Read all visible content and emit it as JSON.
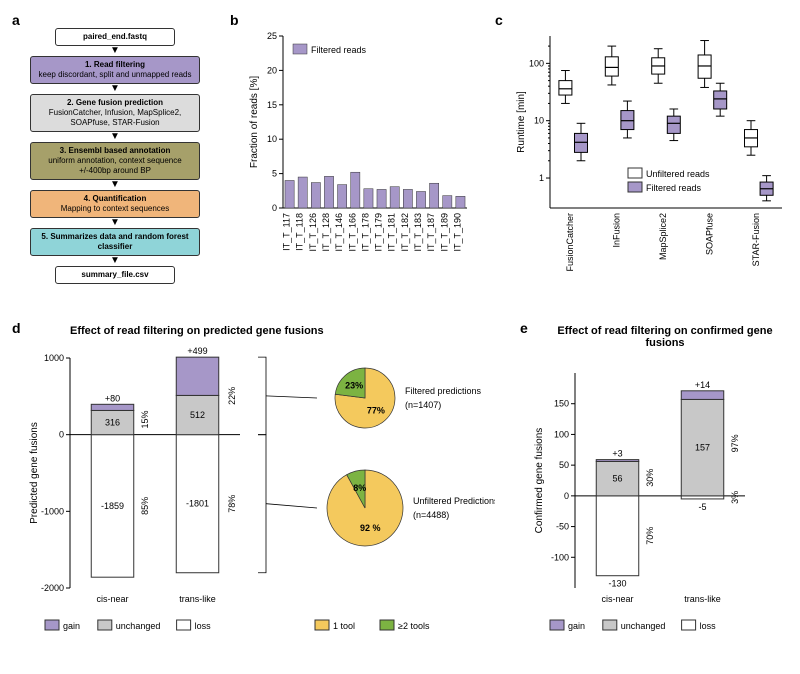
{
  "colors": {
    "purple": "#a697c8",
    "grey": "#c8c8c8",
    "olive": "#a6a06a",
    "orange": "#f0b57a",
    "teal": "#8fd4d8",
    "white": "#ffffff",
    "pieYellow": "#f4c95d",
    "pieGreen": "#7cb342",
    "black": "#000000",
    "border": "#333333"
  },
  "panelA": {
    "label": "a",
    "boxes": [
      {
        "title": "paired_end.fastq",
        "subtitle": "",
        "bg": "#ffffff"
      },
      {
        "title": "1. Read filtering",
        "subtitle": "keep discordant, split and unmapped reads",
        "bg": "#a697c8"
      },
      {
        "title": "2. Gene fusion prediction",
        "subtitle": "FusionCatcher, Infusion, MapSplice2, SOAPfuse, STAR-Fusion",
        "bg": "#dcdcdc"
      },
      {
        "title": "3. Ensembl based annotation",
        "subtitle": "uniform annotation, context sequence +/-400bp around BP",
        "bg": "#a6a06a"
      },
      {
        "title": "4. Quantification",
        "subtitle": "Mapping to context sequences",
        "bg": "#f0b57a"
      },
      {
        "title": "5. Summarizes data and random forest classifier",
        "subtitle": "",
        "bg": "#8fd4d8"
      },
      {
        "title": "summary_file.csv",
        "subtitle": "",
        "bg": "#ffffff"
      }
    ]
  },
  "panelB": {
    "label": "b",
    "ylabel": "Fraction of reads [%]",
    "ylim": [
      0,
      25
    ],
    "ytick_step": 5,
    "bar_color": "#a697c8",
    "legend_label": "Filtered reads",
    "categories": [
      "IT_T_117",
      "IT_T_118",
      "IT_T_126",
      "IT_T_128",
      "IT_T_146",
      "IT_T_166",
      "IT_T_178",
      "IT_T_179",
      "IT_T_181",
      "IT_T_182",
      "IT_T_183",
      "IT_T_187",
      "IT_T_189",
      "IT_T_190"
    ],
    "values": [
      4.0,
      4.5,
      3.7,
      4.6,
      3.4,
      5.2,
      2.8,
      2.7,
      3.1,
      2.7,
      2.4,
      3.6,
      1.8,
      1.7
    ]
  },
  "panelC": {
    "label": "c",
    "ylabel": "Runtime [min]",
    "ylog": true,
    "ylim": [
      0.3,
      300
    ],
    "yticks": [
      1,
      10,
      100
    ],
    "categories": [
      "FusionCatcher",
      "InFusion",
      "MapSplice2",
      "SOAPfuse",
      "STAR-Fusion"
    ],
    "legend": [
      {
        "label": "Unfiltered reads",
        "fill": "#ffffff"
      },
      {
        "label": "Filtered reads",
        "fill": "#a697c8"
      }
    ],
    "boxes": {
      "unfiltered": [
        {
          "q1": 28,
          "med": 36,
          "q3": 50,
          "lo": 20,
          "hi": 75
        },
        {
          "q1": 60,
          "med": 85,
          "q3": 130,
          "lo": 42,
          "hi": 200
        },
        {
          "q1": 65,
          "med": 90,
          "q3": 125,
          "lo": 45,
          "hi": 180
        },
        {
          "q1": 55,
          "med": 90,
          "q3": 140,
          "lo": 38,
          "hi": 250
        },
        {
          "q1": 3.5,
          "med": 5,
          "q3": 7,
          "lo": 2.5,
          "hi": 10
        }
      ],
      "filtered": [
        {
          "q1": 2.8,
          "med": 4.2,
          "q3": 6,
          "lo": 2,
          "hi": 9
        },
        {
          "q1": 7,
          "med": 10,
          "q3": 15,
          "lo": 5,
          "hi": 22
        },
        {
          "q1": 6,
          "med": 9,
          "q3": 12,
          "lo": 4.5,
          "hi": 16
        },
        {
          "q1": 16,
          "med": 24,
          "q3": 33,
          "lo": 12,
          "hi": 45
        },
        {
          "q1": 0.5,
          "med": 0.65,
          "q3": 0.85,
          "lo": 0.4,
          "hi": 1.1
        }
      ]
    }
  },
  "panelD": {
    "label": "d",
    "title": "Effect of read filtering on predicted gene fusions",
    "ylabel": "Predicted gene fusions",
    "ylim": [
      -2000,
      1000
    ],
    "ytick_step": 1000,
    "categories": [
      "cis-near",
      "trans-like"
    ],
    "bars": [
      {
        "gain": 80,
        "unchanged": 316,
        "loss": -1859,
        "gain_label": "+80",
        "unchanged_label": "316",
        "loss_label": "-1859",
        "kept_pct": "15%",
        "lost_pct": "85%"
      },
      {
        "gain": 499,
        "unchanged": 512,
        "loss": -1801,
        "gain_label": "+499",
        "unchanged_label": "512",
        "loss_label": "-1801",
        "kept_pct": "22%",
        "lost_pct": "78%"
      }
    ],
    "pies": [
      {
        "label": "Filtered predictions",
        "n": "(n=1407)",
        "slices": [
          {
            "pct": 77,
            "color": "#f4c95d",
            "text": "77%"
          },
          {
            "pct": 23,
            "color": "#7cb342",
            "text": "23%"
          }
        ],
        "radius": 30
      },
      {
        "label": "Unfiltered Predictions",
        "n": "(n=4488)",
        "slices": [
          {
            "pct": 92,
            "color": "#f4c95d",
            "text": "92 %"
          },
          {
            "pct": 8,
            "color": "#7cb342",
            "text": "8%"
          }
        ],
        "radius": 38
      }
    ],
    "legend_bars": [
      {
        "label": "gain",
        "fill": "#a697c8"
      },
      {
        "label": "unchanged",
        "fill": "#c8c8c8"
      },
      {
        "label": "loss",
        "fill": "#ffffff"
      }
    ],
    "legend_pies": [
      {
        "label": "1 tool",
        "fill": "#f4c95d"
      },
      {
        "label": "≥2 tools",
        "fill": "#7cb342"
      }
    ]
  },
  "panelE": {
    "label": "e",
    "title": "Effect of read filtering on confirmed gene fusions",
    "ylabel": "Confirmed gene fusions",
    "ylim": [
      -150,
      200
    ],
    "ytick_step": 50,
    "yticks": [
      -100,
      -50,
      0,
      50,
      100,
      150
    ],
    "categories": [
      "cis-near",
      "trans-like"
    ],
    "bars": [
      {
        "gain": 3,
        "unchanged": 56,
        "loss": -130,
        "gain_label": "+3",
        "unchanged_label": "56",
        "loss_label": "-130",
        "kept_pct": "30%",
        "lost_pct": "70%"
      },
      {
        "gain": 14,
        "unchanged": 157,
        "loss": -5,
        "gain_label": "+14",
        "unchanged_label": "157",
        "loss_label": "-5",
        "kept_pct": "97%",
        "lost_pct": "3%"
      }
    ],
    "legend_bars": [
      {
        "label": "gain",
        "fill": "#a697c8"
      },
      {
        "label": "unchanged",
        "fill": "#c8c8c8"
      },
      {
        "label": "loss",
        "fill": "#ffffff"
      }
    ]
  }
}
